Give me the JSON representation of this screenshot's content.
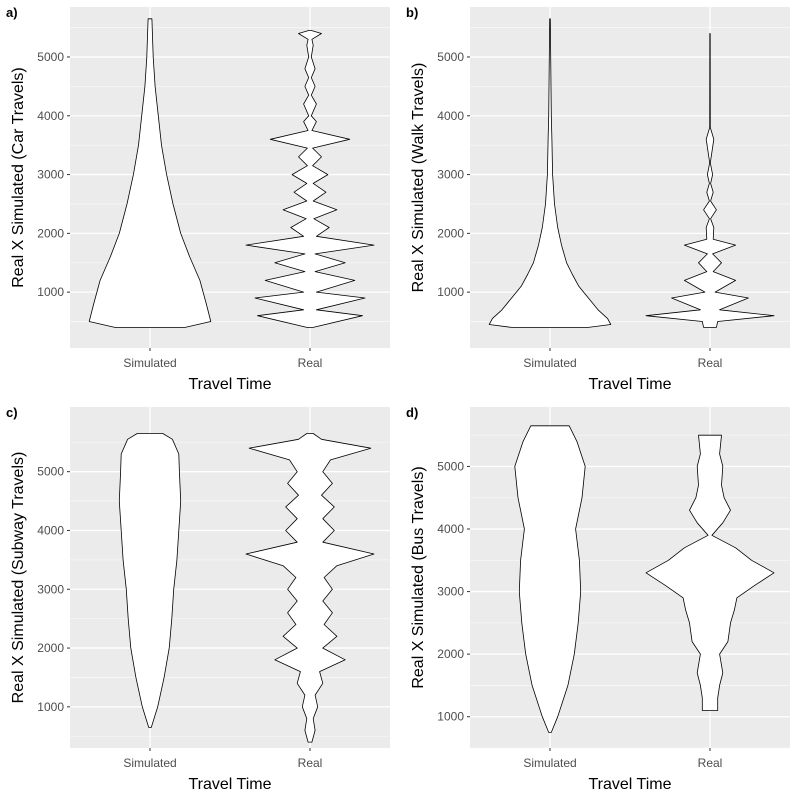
{
  "chart_data": [
    {
      "tag": "a)",
      "type": "violin",
      "xlabel": "Travel Time",
      "ylabel": "Real X Simulated (Car Travels)",
      "categories": [
        "Simulated",
        "Real"
      ],
      "ylim": [
        50,
        5850
      ],
      "yticks": [
        1000,
        2000,
        3000,
        4000,
        5000
      ],
      "series": [
        {
          "category": "Simulated",
          "min": 400,
          "max": 5650,
          "density": [
            [
              400,
              0.55
            ],
            [
              500,
              0.95
            ],
            [
              800,
              0.88
            ],
            [
              1200,
              0.78
            ],
            [
              1600,
              0.62
            ],
            [
              2000,
              0.48
            ],
            [
              2500,
              0.36
            ],
            [
              3000,
              0.26
            ],
            [
              3500,
              0.18
            ],
            [
              4000,
              0.13
            ],
            [
              4500,
              0.08
            ],
            [
              5000,
              0.05
            ],
            [
              5650,
              0.03
            ]
          ]
        },
        {
          "category": "Real",
          "min": 400,
          "max": 5450,
          "density": [
            [
              400,
              0.05
            ],
            [
              600,
              0.82
            ],
            [
              700,
              0.1
            ],
            [
              900,
              0.86
            ],
            [
              1000,
              0.1
            ],
            [
              1200,
              0.7
            ],
            [
              1350,
              0.08
            ],
            [
              1500,
              0.55
            ],
            [
              1650,
              0.08
            ],
            [
              1800,
              1.0
            ],
            [
              1950,
              0.1
            ],
            [
              2100,
              0.3
            ],
            [
              2250,
              0.06
            ],
            [
              2400,
              0.42
            ],
            [
              2550,
              0.05
            ],
            [
              2700,
              0.25
            ],
            [
              2850,
              0.05
            ],
            [
              3000,
              0.28
            ],
            [
              3150,
              0.04
            ],
            [
              3300,
              0.18
            ],
            [
              3450,
              0.04
            ],
            [
              3600,
              0.62
            ],
            [
              3750,
              0.03
            ],
            [
              3900,
              0.1
            ],
            [
              4000,
              0.02
            ],
            [
              4200,
              0.1
            ],
            [
              4350,
              0.02
            ],
            [
              4500,
              0.08
            ],
            [
              4650,
              0.02
            ],
            [
              4800,
              0.08
            ],
            [
              5000,
              0.02
            ],
            [
              5200,
              0.05
            ],
            [
              5300,
              0.03
            ],
            [
              5400,
              0.18
            ],
            [
              5450,
              0.02
            ]
          ]
        }
      ]
    },
    {
      "tag": "b)",
      "type": "violin",
      "xlabel": "Travel Time",
      "ylabel": "Real X Simulated (Walk Travels)",
      "categories": [
        "Simulated",
        "Real"
      ],
      "ylim": [
        50,
        5850
      ],
      "yticks": [
        1000,
        2000,
        3000,
        4000,
        5000
      ],
      "series": [
        {
          "category": "Simulated",
          "min": 400,
          "max": 5650,
          "density": [
            [
              400,
              0.6
            ],
            [
              450,
              0.95
            ],
            [
              550,
              0.9
            ],
            [
              700,
              0.75
            ],
            [
              900,
              0.6
            ],
            [
              1100,
              0.45
            ],
            [
              1300,
              0.35
            ],
            [
              1500,
              0.26
            ],
            [
              1800,
              0.18
            ],
            [
              2100,
              0.12
            ],
            [
              2500,
              0.07
            ],
            [
              3000,
              0.04
            ],
            [
              3600,
              0.03
            ],
            [
              4000,
              0.02
            ],
            [
              5650,
              0.005
            ]
          ]
        },
        {
          "category": "Real",
          "min": 400,
          "max": 5400,
          "density": [
            [
              400,
              0.1
            ],
            [
              500,
              0.12
            ],
            [
              600,
              1.0
            ],
            [
              700,
              0.15
            ],
            [
              900,
              0.6
            ],
            [
              1000,
              0.08
            ],
            [
              1200,
              0.4
            ],
            [
              1350,
              0.05
            ],
            [
              1500,
              0.18
            ],
            [
              1650,
              0.04
            ],
            [
              1800,
              0.4
            ],
            [
              1900,
              0.05
            ],
            [
              2100,
              0.06
            ],
            [
              2250,
              0.01
            ],
            [
              2400,
              0.1
            ],
            [
              2550,
              0.01
            ],
            [
              2700,
              0.05
            ],
            [
              2850,
              0.01
            ],
            [
              3000,
              0.04
            ],
            [
              3200,
              0.005
            ],
            [
              3600,
              0.06
            ],
            [
              3800,
              0.005
            ],
            [
              5400,
              0.003
            ]
          ]
        }
      ]
    },
    {
      "tag": "c)",
      "type": "violin",
      "xlabel": "Travel Time",
      "ylabel": "Real X Simulated (Subway Travels)",
      "categories": [
        "Simulated",
        "Real"
      ],
      "ylim": [
        300,
        6100
      ],
      "yticks": [
        1000,
        2000,
        3000,
        4000,
        5000
      ],
      "series": [
        {
          "category": "Simulated",
          "min": 650,
          "max": 5650,
          "density": [
            [
              650,
              0.02
            ],
            [
              1000,
              0.12
            ],
            [
              1500,
              0.22
            ],
            [
              2000,
              0.3
            ],
            [
              2500,
              0.34
            ],
            [
              3000,
              0.37
            ],
            [
              3500,
              0.42
            ],
            [
              4000,
              0.45
            ],
            [
              4500,
              0.48
            ],
            [
              5000,
              0.46
            ],
            [
              5300,
              0.45
            ],
            [
              5550,
              0.35
            ],
            [
              5650,
              0.2
            ]
          ]
        },
        {
          "category": "Real",
          "min": 400,
          "max": 5650,
          "density": [
            [
              400,
              0.03
            ],
            [
              600,
              0.08
            ],
            [
              800,
              0.05
            ],
            [
              1000,
              0.12
            ],
            [
              1200,
              0.08
            ],
            [
              1400,
              0.2
            ],
            [
              1600,
              0.15
            ],
            [
              1800,
              0.55
            ],
            [
              2000,
              0.2
            ],
            [
              2200,
              0.42
            ],
            [
              2400,
              0.22
            ],
            [
              2600,
              0.35
            ],
            [
              2800,
              0.2
            ],
            [
              3000,
              0.35
            ],
            [
              3200,
              0.22
            ],
            [
              3400,
              0.42
            ],
            [
              3600,
              1.0
            ],
            [
              3800,
              0.2
            ],
            [
              4000,
              0.38
            ],
            [
              4200,
              0.2
            ],
            [
              4400,
              0.38
            ],
            [
              4600,
              0.18
            ],
            [
              4800,
              0.35
            ],
            [
              5000,
              0.2
            ],
            [
              5200,
              0.32
            ],
            [
              5400,
              0.95
            ],
            [
              5550,
              0.18
            ],
            [
              5650,
              0.05
            ]
          ]
        }
      ]
    },
    {
      "tag": "d)",
      "type": "violin",
      "xlabel": "Travel Time",
      "ylabel": "Real X Simulated (Bus Travels)",
      "categories": [
        "Simulated",
        "Real"
      ],
      "ylim": [
        500,
        5950
      ],
      "yticks": [
        1000,
        2000,
        3000,
        4000,
        5000
      ],
      "series": [
        {
          "category": "Simulated",
          "min": 750,
          "max": 5650,
          "density": [
            [
              750,
              0.02
            ],
            [
              1000,
              0.12
            ],
            [
              1500,
              0.28
            ],
            [
              2000,
              0.38
            ],
            [
              2500,
              0.44
            ],
            [
              3000,
              0.48
            ],
            [
              3500,
              0.46
            ],
            [
              4000,
              0.4
            ],
            [
              4500,
              0.5
            ],
            [
              5000,
              0.55
            ],
            [
              5400,
              0.42
            ],
            [
              5650,
              0.3
            ]
          ]
        },
        {
          "category": "Real",
          "min": 1100,
          "max": 5500,
          "density": [
            [
              1100,
              0.12
            ],
            [
              1300,
              0.12
            ],
            [
              1500,
              0.15
            ],
            [
              1700,
              0.2
            ],
            [
              2000,
              0.15
            ],
            [
              2200,
              0.28
            ],
            [
              2500,
              0.32
            ],
            [
              2700,
              0.38
            ],
            [
              2900,
              0.42
            ],
            [
              3100,
              0.7
            ],
            [
              3300,
              1.0
            ],
            [
              3500,
              0.65
            ],
            [
              3700,
              0.4
            ],
            [
              3900,
              0.03
            ],
            [
              4100,
              0.2
            ],
            [
              4300,
              0.32
            ],
            [
              4500,
              0.22
            ],
            [
              4700,
              0.18
            ],
            [
              5000,
              0.2
            ],
            [
              5200,
              0.15
            ],
            [
              5500,
              0.18
            ]
          ]
        }
      ]
    }
  ]
}
